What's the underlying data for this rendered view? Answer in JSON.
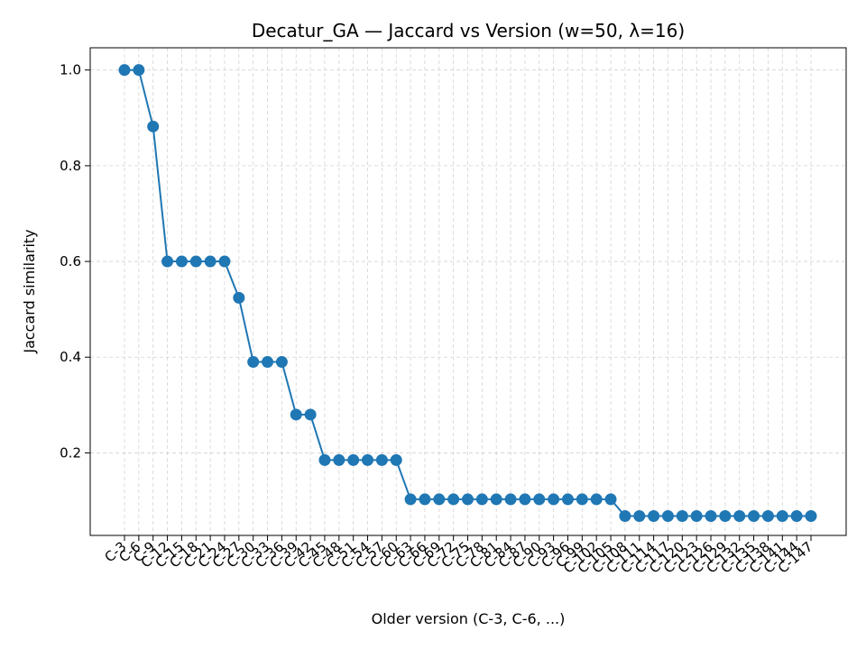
{
  "chart_data": {
    "type": "line",
    "title": "Decatur_GA — Jaccard vs Version (w=50, λ=16)",
    "xlabel": "Older version (C-3, C-6, ...)",
    "ylabel": "Jaccard similarity",
    "categories": [
      "C-3",
      "C-6",
      "C-9",
      "C-12",
      "C-15",
      "C-18",
      "C-21",
      "C-24",
      "C-27",
      "C-30",
      "C-33",
      "C-36",
      "C-39",
      "C-42",
      "C-45",
      "C-48",
      "C-51",
      "C-54",
      "C-57",
      "C-60",
      "C-63",
      "C-66",
      "C-69",
      "C-72",
      "C-75",
      "C-78",
      "C-81",
      "C-84",
      "C-87",
      "C-90",
      "C-93",
      "C-96",
      "C-99",
      "C-102",
      "C-105",
      "C-108",
      "C-111",
      "C-114",
      "C-117",
      "C-120",
      "C-123",
      "C-126",
      "C-129",
      "C-132",
      "C-135",
      "C-138",
      "C-141",
      "C-144",
      "C-147"
    ],
    "series": [
      {
        "values": [
          1.0,
          1.0,
          0.882,
          0.6,
          0.6,
          0.6,
          0.6,
          0.6,
          0.524,
          0.39,
          0.39,
          0.39,
          0.28,
          0.28,
          0.185,
          0.185,
          0.185,
          0.185,
          0.185,
          0.185,
          0.103,
          0.103,
          0.103,
          0.103,
          0.103,
          0.103,
          0.103,
          0.103,
          0.103,
          0.103,
          0.103,
          0.103,
          0.103,
          0.103,
          0.103,
          0.068,
          0.068,
          0.068,
          0.068,
          0.068,
          0.068,
          0.068,
          0.068,
          0.068,
          0.068,
          0.068,
          0.068,
          0.068,
          0.068
        ],
        "color": "#1f77b4"
      }
    ],
    "yticks": [
      0.2,
      0.4,
      0.6,
      0.8,
      1.0
    ],
    "ytick_labels": [
      "0.2",
      "0.4",
      "0.6",
      "0.8",
      "1.0"
    ],
    "ylim": [
      0.0275,
      1.0465
    ],
    "grid": true,
    "grid_style": "dashed"
  }
}
